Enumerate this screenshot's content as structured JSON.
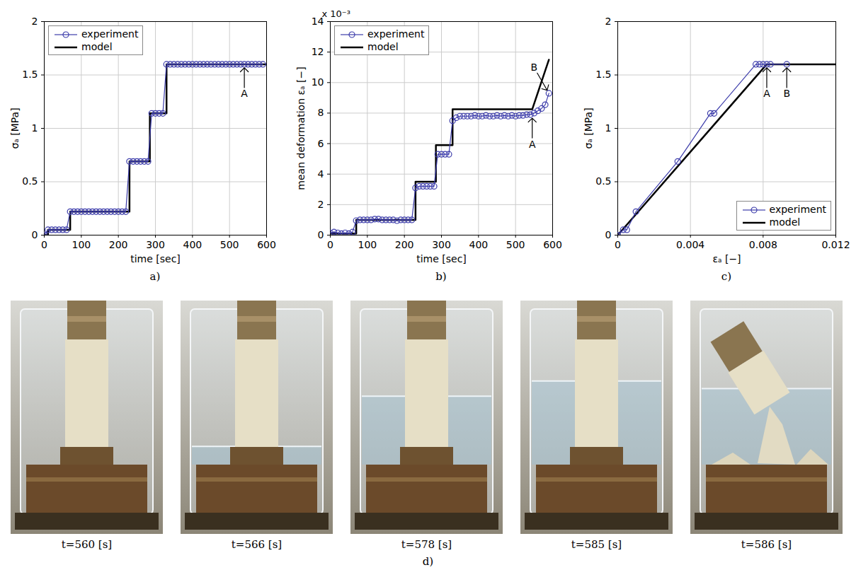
{
  "chart_data": [
    {
      "type": "line",
      "panel_label": "a)",
      "x_label": "time [sec]",
      "y_label": "σₐ [MPa]",
      "xlim": [
        0,
        600
      ],
      "ylim": [
        0,
        2
      ],
      "xticks": [
        0,
        100,
        200,
        300,
        400,
        500,
        600
      ],
      "yticks": [
        0,
        0.5,
        1,
        1.5,
        2
      ],
      "grid": true,
      "legend": "top-left",
      "series": [
        {
          "name": "experiment",
          "color": "#3c3caa",
          "marker": "circle",
          "line_style": "solid",
          "x": [
            0,
            10,
            20,
            30,
            40,
            50,
            60,
            70,
            80,
            90,
            100,
            110,
            120,
            130,
            140,
            150,
            160,
            170,
            180,
            190,
            200,
            210,
            220,
            230,
            240,
            250,
            260,
            270,
            280,
            290,
            300,
            310,
            320,
            330,
            340,
            350,
            360,
            370,
            380,
            390,
            400,
            410,
            420,
            430,
            440,
            450,
            460,
            470,
            480,
            490,
            500,
            510,
            520,
            530,
            540,
            550,
            560,
            570,
            580,
            590
          ],
          "values": [
            0,
            0.05,
            0.05,
            0.05,
            0.05,
            0.05,
            0.05,
            0.22,
            0.22,
            0.22,
            0.22,
            0.22,
            0.22,
            0.22,
            0.22,
            0.22,
            0.22,
            0.22,
            0.22,
            0.22,
            0.22,
            0.22,
            0.22,
            0.69,
            0.69,
            0.69,
            0.69,
            0.69,
            0.69,
            1.14,
            1.14,
            1.14,
            1.14,
            1.6,
            1.6,
            1.6,
            1.6,
            1.6,
            1.6,
            1.6,
            1.6,
            1.6,
            1.6,
            1.6,
            1.6,
            1.6,
            1.6,
            1.6,
            1.6,
            1.6,
            1.6,
            1.6,
            1.6,
            1.6,
            1.6,
            1.6,
            1.6,
            1.6,
            1.6,
            1.6
          ]
        },
        {
          "name": "model",
          "color": "#000000",
          "marker": "none",
          "line_style": "solid",
          "x": [
            0,
            10,
            10,
            70,
            70,
            230,
            230,
            285,
            285,
            330,
            330,
            600
          ],
          "values": [
            0,
            0,
            0.05,
            0.05,
            0.22,
            0.22,
            0.69,
            0.69,
            1.14,
            1.14,
            1.6,
            1.6
          ]
        }
      ],
      "annotations": [
        {
          "text": "A",
          "x": 540,
          "y": 1.6
        }
      ]
    },
    {
      "type": "line",
      "panel_label": "b)",
      "x_label": "time [sec]",
      "y_label": "mean deformation εₐ [−]",
      "y_multiplier": "x 10⁻³",
      "xlim": [
        0,
        600
      ],
      "ylim": [
        0,
        14
      ],
      "xticks": [
        0,
        100,
        200,
        300,
        400,
        500,
        600
      ],
      "yticks": [
        0,
        2,
        4,
        6,
        8,
        10,
        12,
        14
      ],
      "grid": true,
      "legend": "top-left",
      "series": [
        {
          "name": "experiment",
          "color": "#3c3caa",
          "marker": "circle",
          "line_style": "solid",
          "x": [
            0,
            10,
            20,
            30,
            40,
            50,
            60,
            70,
            80,
            90,
            100,
            110,
            120,
            130,
            140,
            150,
            160,
            170,
            180,
            190,
            200,
            210,
            220,
            230,
            240,
            250,
            260,
            270,
            280,
            290,
            300,
            310,
            320,
            330,
            340,
            350,
            360,
            370,
            380,
            390,
            400,
            410,
            420,
            430,
            440,
            450,
            460,
            470,
            480,
            490,
            500,
            510,
            520,
            530,
            540,
            550,
            560,
            570,
            580,
            590
          ],
          "values": [
            0.15,
            0.2,
            0.15,
            0.1,
            0.15,
            0.1,
            0.2,
            0.95,
            1.0,
            1.0,
            1.0,
            1.0,
            1.05,
            1.05,
            1.0,
            1.0,
            1.0,
            1.0,
            0.95,
            1.0,
            1.0,
            1.0,
            1.0,
            3.1,
            3.2,
            3.2,
            3.2,
            3.2,
            3.2,
            5.3,
            5.3,
            5.3,
            5.3,
            7.5,
            7.7,
            7.8,
            7.8,
            7.8,
            7.8,
            7.85,
            7.8,
            7.8,
            7.85,
            7.8,
            7.8,
            7.85,
            7.8,
            7.85,
            7.8,
            7.85,
            7.8,
            7.85,
            7.85,
            7.9,
            7.9,
            8.0,
            8.15,
            8.3,
            8.55,
            9.3
          ]
        },
        {
          "name": "model",
          "color": "#000000",
          "marker": "none",
          "line_style": "solid",
          "x": [
            0,
            70,
            70,
            230,
            230,
            285,
            285,
            330,
            330,
            545,
            590
          ],
          "values": [
            0.1,
            0.1,
            1.0,
            1.0,
            3.5,
            3.5,
            5.9,
            5.9,
            8.25,
            8.25,
            11.5
          ]
        }
      ],
      "annotations": [
        {
          "text": "A",
          "x": 545,
          "y": 7.9
        },
        {
          "text": "B",
          "x": 590,
          "y": 9.3
        }
      ]
    },
    {
      "type": "line",
      "panel_label": "c)",
      "x_label": "εₐ [−]",
      "y_label": "σₐ [MPa]",
      "xlim": [
        0,
        0.012
      ],
      "ylim": [
        0,
        2
      ],
      "xticks": [
        0,
        0.004,
        0.008,
        0.012
      ],
      "yticks": [
        0,
        0.5,
        1,
        1.5,
        2
      ],
      "grid": true,
      "legend": "bottom-right",
      "series": [
        {
          "name": "experiment",
          "color": "#3c3caa",
          "marker": "circle",
          "line_style": "solid",
          "x": [
            0,
            0.0003,
            0.0005,
            0.001,
            0.0033,
            0.0051,
            0.0053,
            0.0076,
            0.0078,
            0.008,
            0.0082,
            0.0084,
            0.0093
          ],
          "values": [
            0,
            0.05,
            0.05,
            0.22,
            0.69,
            1.14,
            1.14,
            1.6,
            1.6,
            1.6,
            1.6,
            1.6,
            1.6
          ]
        },
        {
          "name": "model",
          "color": "#000000",
          "marker": "none",
          "line_style": "solid",
          "x": [
            0,
            0.0082,
            0.012
          ],
          "values": [
            0,
            1.6,
            1.6
          ]
        }
      ],
      "annotations": [
        {
          "text": "A",
          "x": 0.0082,
          "y": 1.6
        },
        {
          "text": "B",
          "x": 0.0093,
          "y": 1.6
        }
      ]
    }
  ],
  "panel_d": {
    "label": "d)",
    "captions": [
      "t=560 [s]",
      "t=566 [s]",
      "t=578 [s]",
      "t=585 [s]",
      "t=586 [s]"
    ]
  }
}
